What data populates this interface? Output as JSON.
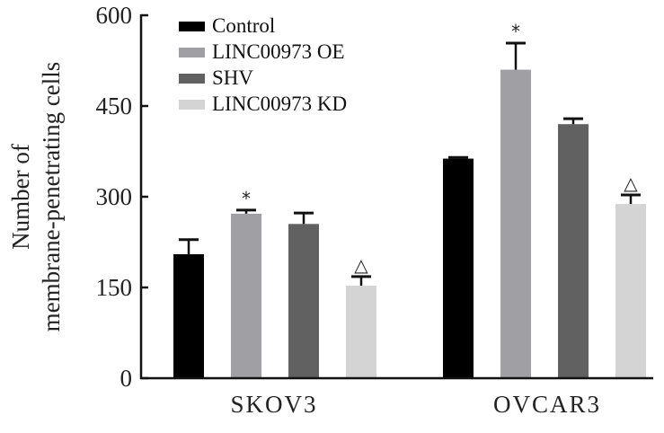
{
  "chart_data": {
    "type": "bar",
    "title": "",
    "xlabel": "",
    "ylabel": "Number of membrane-penetrating cells",
    "ylabel_lines": [
      "Number of",
      "membrane-penetrating cells"
    ],
    "ylim": [
      0,
      600
    ],
    "yticks": [
      0,
      150,
      300,
      450,
      600
    ],
    "ytick_labels": [
      "0",
      "150",
      "300",
      "450",
      "600"
    ],
    "grid": false,
    "legend_position": "top-left",
    "categories": [
      "SKOV3",
      "OVCAR3"
    ],
    "series": [
      {
        "name": "Control",
        "color": "#000000",
        "values": [
          205,
          363
        ],
        "error": [
          24,
          2
        ],
        "annotations": [
          "",
          ""
        ]
      },
      {
        "name": "LINC00973 OE",
        "color": "#a0a0a4",
        "values": [
          272,
          510
        ],
        "error": [
          6,
          44
        ],
        "annotations": [
          "*",
          "*"
        ]
      },
      {
        "name": "SHV",
        "color": "#616161",
        "values": [
          255,
          420
        ],
        "error": [
          18,
          9
        ],
        "annotations": [
          "",
          ""
        ]
      },
      {
        "name": "LINC00973 KD",
        "color": "#d4d4d4",
        "values": [
          153,
          288
        ],
        "error": [
          15,
          15
        ],
        "annotations": [
          "△",
          "△"
        ]
      }
    ]
  }
}
